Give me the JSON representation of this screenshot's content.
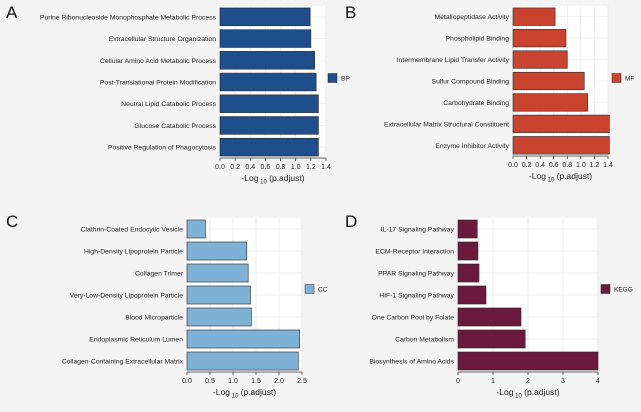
{
  "chart_data": [
    {
      "panel": "A",
      "type": "bar",
      "orientation": "horizontal",
      "categories": [
        "Purine Ribonucleoside Monophosphate Metabolic Process",
        "Extracellular Structure Organization",
        "Cellular Amino Acid Metabolic Process",
        "Post-Translational Protein Modification",
        "Neutral Lipid Catabolic Process",
        "Glucose Catabolic Process",
        "Positive Regulation of Phagocytosis"
      ],
      "values": [
        1.19,
        1.2,
        1.25,
        1.27,
        1.3,
        1.3,
        1.3
      ],
      "xlim": [
        0,
        1.4
      ],
      "ticks": [
        "0.0",
        "0.2",
        "0.4",
        "0.6",
        "0.8",
        "1.0",
        "1.2",
        "1.4"
      ],
      "xlabel_pre": "-Log",
      "xlabel_sub": "10",
      "xlabel_post": " (p.adjust)",
      "legend": "BP",
      "color": "#1f4e8c"
    },
    {
      "panel": "B",
      "type": "bar",
      "orientation": "horizontal",
      "categories": [
        "Metallopeptidase Activity",
        "Phospholipid Binding",
        "Intermembrane Lipid Transfer Activity",
        "Sulfur Compound Binding",
        "Carbohydrate Binding",
        "Extracellular Matrix Structural Constituent",
        "Enzyme Inhibitor Activity"
      ],
      "values": [
        0.62,
        0.78,
        0.8,
        1.05,
        1.1,
        1.42,
        1.42
      ],
      "xlim": [
        0,
        1.4
      ],
      "ticks": [
        "0.0",
        "0.2",
        "0.4",
        "0.6",
        "0.8",
        "1.0",
        "1.2",
        "1.4"
      ],
      "xlabel_pre": "-Log",
      "xlabel_sub": "10",
      "xlabel_post": " (p.adjust)",
      "legend": "MF",
      "color": "#c9432f"
    },
    {
      "panel": "C",
      "type": "bar",
      "orientation": "horizontal",
      "categories": [
        "Clathrin-Coated Endocytic Vesicle",
        "High-Density Lipoprotein Particle",
        "Collagen Trimer",
        "Very-Low-Density Lipoprotein Particle",
        "Blood Microparticle",
        "Endoplasmic Reticulum Lumen",
        "Collagen-Containing Extracellular Matrix"
      ],
      "values": [
        0.4,
        1.3,
        1.33,
        1.38,
        1.4,
        2.45,
        2.42
      ],
      "xlim": [
        0,
        2.5
      ],
      "ticks": [
        "0.0",
        "0.5",
        "1.0",
        "1.5",
        "2.0",
        "2.5"
      ],
      "xlabel_pre": "-Log",
      "xlabel_sub": "10",
      "xlabel_post": " (p.adjust)",
      "legend": "CC",
      "color": "#7fb1d6"
    },
    {
      "panel": "D",
      "type": "bar",
      "orientation": "horizontal",
      "categories": [
        "IL-17 Signaling Pathway",
        "ECM-Receptor Interaction",
        "PPAR Signaling Pathway",
        "HIF-1 Signaling Pathway",
        "One Carbon Pool by Folate",
        "Carbon Metabolism",
        "Biosynthesis of Amino Acids"
      ],
      "values": [
        0.55,
        0.57,
        0.6,
        0.8,
        1.8,
        1.92,
        4.0
      ],
      "xlim": [
        0,
        4
      ],
      "ticks": [
        "0",
        "1",
        "2",
        "3",
        "4"
      ],
      "xlabel_pre": "-Log",
      "xlabel_sub": "10",
      "xlabel_post": " (p.adjust)",
      "legend": "KEGG",
      "color": "#6b1a3d"
    }
  ]
}
